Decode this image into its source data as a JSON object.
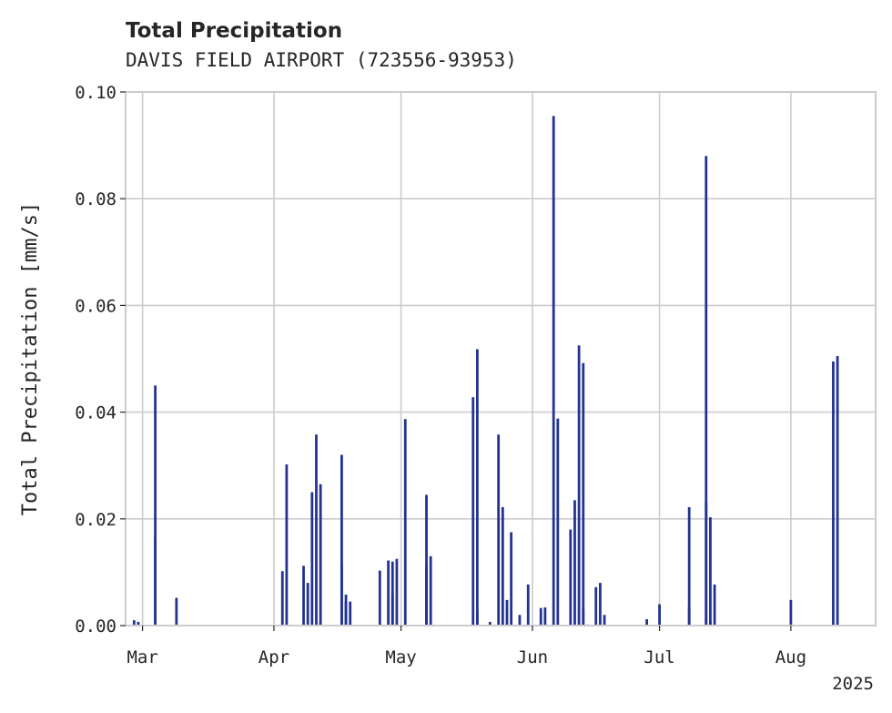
{
  "chart_data": {
    "type": "bar",
    "title": "Total Precipitation",
    "subtitle": "DAVIS FIELD AIRPORT (723556-93953)",
    "xlabel": "",
    "ylabel": "Total Precipitation [mm/s]",
    "year_label": "2025",
    "ylim": [
      0,
      0.1
    ],
    "xlim": [
      "2025-02-25",
      "2025-08-21"
    ],
    "y_ticks": [
      "0.00",
      "0.02",
      "0.04",
      "0.06",
      "0.08",
      "0.10"
    ],
    "x_ticks": [
      {
        "date": "2025-03-01",
        "label": "Mar"
      },
      {
        "date": "2025-04-01",
        "label": "Apr"
      },
      {
        "date": "2025-05-01",
        "label": "May"
      },
      {
        "date": "2025-06-01",
        "label": "Jun"
      },
      {
        "date": "2025-07-01",
        "label": "Jul"
      },
      {
        "date": "2025-08-01",
        "label": "Aug"
      }
    ],
    "grid": true,
    "series": [
      {
        "color": "#23338f",
        "x": [
          "2025-02-27",
          "2025-02-28",
          "2025-03-04",
          "2025-03-04",
          "2025-03-09",
          "2025-04-03",
          "2025-04-04",
          "2025-04-08",
          "2025-04-09",
          "2025-04-10",
          "2025-04-11",
          "2025-04-12",
          "2025-04-12",
          "2025-04-17",
          "2025-04-17",
          "2025-04-18",
          "2025-04-18",
          "2025-04-19",
          "2025-04-26",
          "2025-04-28",
          "2025-04-29",
          "2025-04-29",
          "2025-04-30",
          "2025-05-02",
          "2025-05-07",
          "2025-05-07",
          "2025-05-08",
          "2025-05-18",
          "2025-05-19",
          "2025-05-19",
          "2025-05-22",
          "2025-05-24",
          "2025-05-25",
          "2025-05-26",
          "2025-05-27",
          "2025-05-29",
          "2025-05-31",
          "2025-06-03",
          "2025-06-04",
          "2025-06-06",
          "2025-06-07",
          "2025-06-10",
          "2025-06-11",
          "2025-06-12",
          "2025-06-13",
          "2025-06-13",
          "2025-06-14",
          "2025-06-16",
          "2025-06-17",
          "2025-06-18",
          "2025-06-28",
          "2025-07-01",
          "2025-07-08",
          "2025-07-08",
          "2025-07-12",
          "2025-07-12",
          "2025-07-13",
          "2025-07-13",
          "2025-07-14",
          "2025-08-01",
          "2025-08-11",
          "2025-08-12"
        ],
        "values": [
          0.001,
          0.0007,
          0.045,
          0.0165,
          0.0052,
          0.0102,
          0.0302,
          0.0112,
          0.008,
          0.025,
          0.0358,
          0.0265,
          0.0007,
          0.032,
          0.0115,
          0.0058,
          0.0045,
          0.0045,
          0.0103,
          0.0122,
          0.012,
          0.006,
          0.0125,
          0.0387,
          0.0245,
          0.0113,
          0.013,
          0.0428,
          0.0027,
          0.0518,
          0.0007,
          0.0358,
          0.0222,
          0.0048,
          0.0175,
          0.002,
          0.0077,
          0.0033,
          0.0034,
          0.0955,
          0.0388,
          0.018,
          0.0235,
          0.0525,
          0.0492,
          0.003,
          0.0002,
          0.0072,
          0.008,
          0.002,
          0.0012,
          0.004,
          0.0035,
          0.0222,
          0.023,
          0.088,
          0.0203,
          0.0008,
          0.0077,
          0.0048,
          0.0495,
          0.0505
        ]
      }
    ]
  }
}
